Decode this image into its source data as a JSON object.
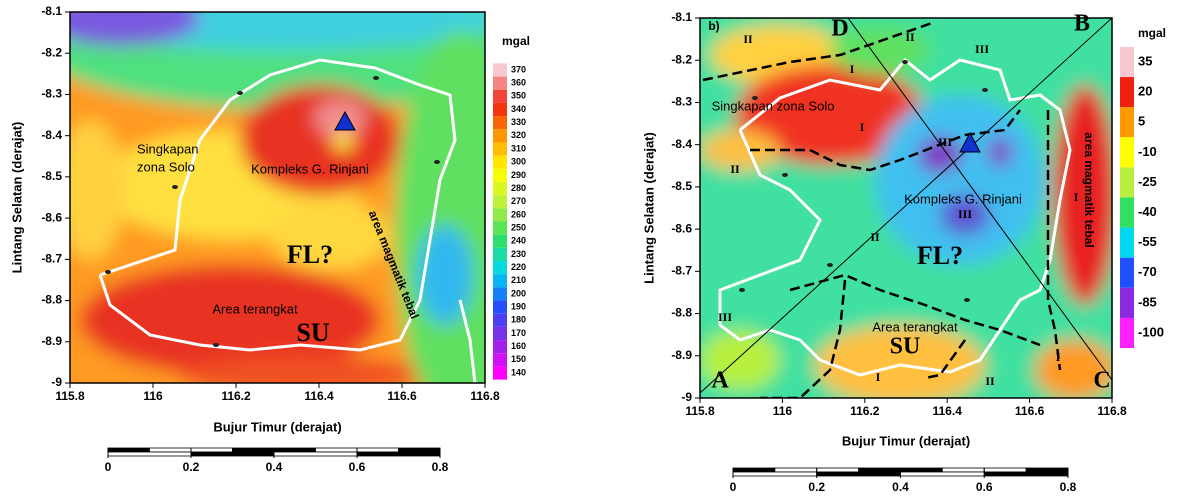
{
  "chart_data": [
    {
      "type": "contour",
      "xlabel": "Bujur Timur (derajat)",
      "ylabel": "Lintang Selatan (derajat)",
      "xlim": [
        115.8,
        116.8
      ],
      "ylim": [
        -9,
        -8.1
      ],
      "xticks": [
        115.8,
        116,
        116.2,
        116.4,
        116.6,
        116.8
      ],
      "yticks": [
        -8.1,
        -8.2,
        -8.3,
        -8.4,
        -8.5,
        -8.6,
        -8.7,
        -8.8,
        -8.9,
        -9
      ],
      "colorbar": {
        "title": "mgal",
        "clim": [
          140,
          370
        ],
        "ticks": [
          370,
          360,
          350,
          340,
          330,
          320,
          310,
          300,
          290,
          280,
          270,
          260,
          250,
          240,
          230,
          220,
          210,
          200,
          190,
          180,
          170,
          160,
          150,
          140
        ],
        "colormap": [
          "#ff00ff",
          "#8a2be2",
          "#2050ff",
          "#00d8f0",
          "#30e060",
          "#b8f040",
          "#ffff00",
          "#ff9a00",
          "#f02010",
          "#f8c8d0"
        ]
      },
      "annotations": [
        {
          "text": "Singkapan"
        },
        {
          "text": "zona Solo"
        },
        {
          "text": "Kompleks G. Rinjani"
        },
        {
          "text": "FL?"
        },
        {
          "text": "Area terangkat"
        },
        {
          "text": "SU"
        },
        {
          "text": "area magmatik tebal"
        }
      ],
      "scalebar": {
        "ticks": [
          0,
          0.2,
          0.4,
          0.6,
          0.8
        ]
      }
    },
    {
      "type": "contour",
      "xlabel": "Bujur Timur (derajat)",
      "ylabel": "Lintang Selatan (derajat)",
      "xlim": [
        115.8,
        116.8
      ],
      "ylim": [
        -9,
        -8.1
      ],
      "xticks": [
        115.8,
        116,
        116.2,
        116.4,
        116.6,
        116.8
      ],
      "yticks": [
        -8.1,
        -8.2,
        -8.3,
        -8.4,
        -8.5,
        -8.6,
        -8.7,
        -8.8,
        -8.9,
        -9
      ],
      "colorbar": {
        "title": "mgal",
        "clim": [
          -100,
          35
        ],
        "ticks": [
          35,
          20,
          5,
          -10,
          -25,
          -40,
          -55,
          -70,
          -85,
          -100
        ],
        "colormap": [
          "#ff20ff",
          "#8a2be2",
          "#2050ff",
          "#00d8f0",
          "#30e060",
          "#b8f040",
          "#ffff00",
          "#ff9a00",
          "#f02010",
          "#f8c8d0"
        ]
      },
      "annotations": [
        {
          "text": "b)"
        },
        {
          "text": "D"
        },
        {
          "text": "B"
        },
        {
          "text": "A"
        },
        {
          "text": "C"
        },
        {
          "text": "Singkapan zona Solo"
        },
        {
          "text": "Kompleks G. Rinjani"
        },
        {
          "text": "FL?"
        },
        {
          "text": "Area terangkat"
        },
        {
          "text": "SU"
        },
        {
          "text": "area magmatik tebal"
        },
        {
          "text": "II"
        },
        {
          "text": "II"
        },
        {
          "text": "III"
        },
        {
          "text": "I"
        },
        {
          "text": "I"
        },
        {
          "text": "III"
        },
        {
          "text": "II"
        },
        {
          "text": "I"
        },
        {
          "text": "II"
        },
        {
          "text": "III"
        },
        {
          "text": "III"
        },
        {
          "text": "I"
        },
        {
          "text": "II"
        },
        {
          "text": "I"
        }
      ],
      "scalebar": {
        "ticks": [
          0,
          0.2,
          0.4,
          0.6,
          0.8
        ]
      }
    }
  ]
}
